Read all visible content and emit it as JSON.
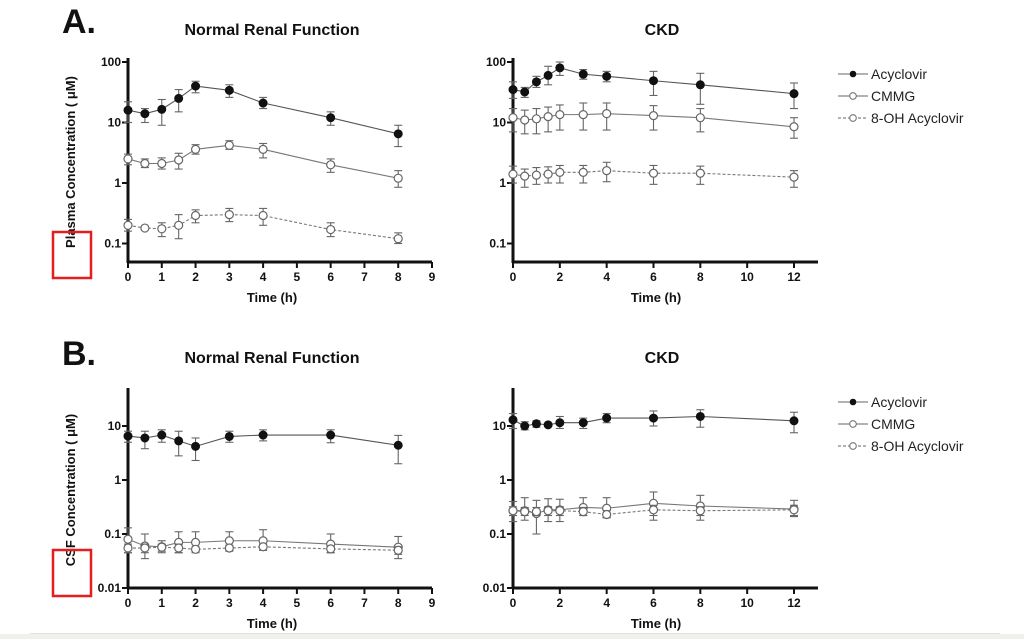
{
  "figure": {
    "panel_labels": [
      "A.",
      "B."
    ],
    "highlight_color": "#e41e1e"
  },
  "chart_data": [
    {
      "id": "plasma-normal",
      "type": "line",
      "panel": "A.",
      "title": "Normal Renal Function",
      "xlabel": "Time (h)",
      "ylabel_prefix": "Plasma",
      "ylabel": "Concentration ( μM)",
      "yscale": "log",
      "xlim": [
        0,
        9
      ],
      "ylim": [
        0.05,
        100
      ],
      "xticks": [
        0,
        1,
        2,
        3,
        4,
        5,
        6,
        7,
        8,
        9
      ],
      "xtick_labels": [
        "0",
        "1",
        "2",
        "3",
        "4",
        "5",
        "6",
        "7",
        "8",
        "9"
      ],
      "yticks": [
        100,
        10,
        1,
        0.1
      ],
      "ytick_labels": [
        "100",
        "10",
        "1",
        "0.1"
      ],
      "x": [
        0,
        0.5,
        1,
        1.5,
        2,
        3,
        4,
        6,
        8
      ],
      "series": [
        {
          "name": "Acyclovir",
          "marker": "filled-circle",
          "line": "solid",
          "values": [
            16,
            14,
            16.5,
            25,
            40,
            34,
            21,
            12,
            6.5
          ],
          "err_low": [
            10,
            10,
            9,
            15,
            31,
            26,
            17,
            9,
            4
          ],
          "err_high": [
            22,
            17,
            24,
            35,
            48,
            42,
            26,
            15,
            9
          ]
        },
        {
          "name": "CMMG",
          "marker": "open-circle",
          "line": "solid",
          "values": [
            2.5,
            2.1,
            2.1,
            2.4,
            3.6,
            4.2,
            3.6,
            2.0,
            1.2
          ],
          "err_low": [
            2.0,
            1.8,
            1.7,
            1.7,
            3.0,
            3.6,
            2.6,
            1.5,
            0.85
          ],
          "err_high": [
            3.0,
            2.5,
            2.6,
            3.1,
            4.3,
            5.0,
            4.5,
            2.5,
            1.6
          ]
        },
        {
          "name": "8-OH Acyclovir",
          "marker": "open-circle",
          "line": "dashed",
          "values": [
            0.2,
            0.18,
            0.175,
            0.2,
            0.29,
            0.3,
            0.29,
            0.17,
            0.12
          ],
          "err_low": [
            0.16,
            0.17,
            0.13,
            0.12,
            0.22,
            0.23,
            0.2,
            0.13,
            0.1
          ],
          "err_high": [
            0.25,
            0.19,
            0.22,
            0.3,
            0.36,
            0.38,
            0.38,
            0.22,
            0.15
          ]
        }
      ]
    },
    {
      "id": "plasma-ckd",
      "type": "line",
      "panel": "A.",
      "title": "CKD",
      "xlabel": "Time (h)",
      "yscale": "log",
      "xlim": [
        0,
        13.5
      ],
      "ylim": [
        0.05,
        100
      ],
      "xticks": [
        0,
        2,
        4,
        6,
        8,
        10,
        12
      ],
      "xtick_labels": [
        "0",
        "2",
        "4",
        "6",
        "8",
        "10",
        "12"
      ],
      "yticks": [
        100,
        10,
        1,
        0.1
      ],
      "ytick_labels": [
        "100",
        "10",
        "1",
        "0.1"
      ],
      "x": [
        0,
        0.5,
        1,
        1.5,
        2,
        3,
        4,
        6,
        8,
        12
      ],
      "series": [
        {
          "name": "Acyclovir",
          "marker": "filled-circle",
          "line": "solid",
          "values": [
            35,
            32,
            47,
            60,
            80,
            63,
            58,
            49,
            42,
            30
          ],
          "err_low": [
            25,
            26,
            38,
            42,
            60,
            52,
            47,
            28,
            20,
            17
          ],
          "err_high": [
            47,
            38,
            58,
            85,
            100,
            75,
            70,
            70,
            65,
            45
          ]
        },
        {
          "name": "CMMG",
          "marker": "open-circle",
          "line": "solid",
          "values": [
            12,
            11,
            11.5,
            12.5,
            13.5,
            13.5,
            14,
            13,
            12,
            8.5
          ],
          "err_low": [
            7,
            6.5,
            6.5,
            7,
            7.5,
            7.5,
            7.5,
            7.5,
            7,
            5.5
          ],
          "err_high": [
            17,
            16,
            17,
            18,
            19.5,
            21,
            21,
            19,
            17,
            12
          ]
        },
        {
          "name": "8-OH Acyclovir",
          "marker": "open-circle",
          "line": "dashed",
          "values": [
            1.4,
            1.3,
            1.35,
            1.4,
            1.5,
            1.5,
            1.6,
            1.45,
            1.45,
            1.25
          ],
          "err_low": [
            1.0,
            0.85,
            0.95,
            1.0,
            1.0,
            1.0,
            1.05,
            0.95,
            0.95,
            0.85
          ],
          "err_high": [
            1.9,
            1.7,
            1.8,
            1.85,
            1.95,
            1.95,
            2.2,
            1.95,
            1.9,
            1.6
          ]
        }
      ],
      "legend": {
        "position": "right",
        "entries": [
          "Acyclovir",
          "CMMG",
          "8-OH Acyclovir"
        ]
      }
    },
    {
      "id": "csf-normal",
      "type": "line",
      "panel": "B.",
      "title": "Normal Renal Function",
      "xlabel": "Time (h)",
      "ylabel_prefix": "CSF",
      "ylabel": "Concentration ( μM)",
      "yscale": "log",
      "xlim": [
        0,
        9
      ],
      "ylim": [
        0.01,
        50
      ],
      "xticks": [
        0,
        1,
        2,
        3,
        4,
        5,
        6,
        7,
        8,
        9
      ],
      "xtick_labels": [
        "0",
        "1",
        "2",
        "3",
        "4",
        "5",
        "6",
        "7",
        "8",
        "9"
      ],
      "yticks": [
        10,
        1,
        0.1,
        0.01
      ],
      "ytick_labels": [
        "10",
        "1",
        "0.1",
        "0.01"
      ],
      "x": [
        0,
        0.5,
        1,
        1.5,
        2,
        3,
        4,
        6,
        8
      ],
      "series": [
        {
          "name": "Acyclovir",
          "marker": "filled-circle",
          "line": "solid",
          "values": [
            6.5,
            6.0,
            6.8,
            5.3,
            4.2,
            6.4,
            6.8,
            6.8,
            4.4
          ],
          "err_low": [
            5.0,
            3.8,
            5.0,
            2.8,
            2.3,
            5.0,
            5.3,
            4.9,
            2.0
          ],
          "err_high": [
            8.0,
            8.0,
            8.5,
            8.0,
            6.0,
            8.0,
            8.5,
            8.5,
            6.7
          ]
        },
        {
          "name": "CMMG",
          "marker": "open-circle",
          "line": "solid",
          "values": [
            0.08,
            0.06,
            0.058,
            0.07,
            0.07,
            0.075,
            0.075,
            0.065,
            0.057
          ],
          "err_low": [
            0.045,
            0.035,
            0.045,
            0.045,
            0.045,
            0.05,
            0.05,
            0.045,
            0.035
          ],
          "err_high": [
            0.13,
            0.1,
            0.075,
            0.11,
            0.11,
            0.11,
            0.12,
            0.1,
            0.09
          ]
        },
        {
          "name": "8-OH Acyclovir",
          "marker": "open-circle",
          "line": "dashed",
          "values": [
            0.055,
            0.055,
            0.057,
            0.055,
            0.052,
            0.055,
            0.058,
            0.053,
            0.05
          ],
          "err_low": [
            0.045,
            0.045,
            0.048,
            0.045,
            0.048,
            0.048,
            0.05,
            0.045,
            0.042
          ],
          "err_high": [
            0.065,
            0.065,
            0.065,
            0.065,
            0.058,
            0.062,
            0.065,
            0.06,
            0.058
          ]
        }
      ]
    },
    {
      "id": "csf-ckd",
      "type": "line",
      "panel": "B.",
      "title": "CKD",
      "xlabel": "Time (h)",
      "yscale": "log",
      "xlim": [
        0,
        13.5
      ],
      "ylim": [
        0.01,
        50
      ],
      "xticks": [
        0,
        2,
        4,
        6,
        8,
        10,
        12
      ],
      "xtick_labels": [
        "0",
        "2",
        "4",
        "6",
        "8",
        "10",
        "12"
      ],
      "yticks": [
        10,
        1,
        0.1,
        0.01
      ],
      "ytick_labels": [
        "10",
        "1",
        "0.1",
        "0.01"
      ],
      "x": [
        0,
        0.5,
        1,
        1.5,
        2,
        3,
        4,
        6,
        8,
        12
      ],
      "series": [
        {
          "name": "Acyclovir",
          "marker": "filled-circle",
          "line": "solid",
          "values": [
            13,
            10,
            11,
            10.5,
            11.5,
            11.5,
            14,
            14,
            15,
            12.5
          ],
          "err_low": [
            9,
            8.5,
            9.5,
            9.8,
            9,
            9,
            11.5,
            10,
            9.5,
            7.5
          ],
          "err_high": [
            17,
            12,
            12.5,
            11,
            15,
            14,
            17,
            19,
            20,
            18
          ]
        },
        {
          "name": "CMMG",
          "marker": "open-circle",
          "line": "solid",
          "values": [
            0.27,
            0.27,
            0.24,
            0.28,
            0.28,
            0.31,
            0.3,
            0.37,
            0.33,
            0.29
          ],
          "err_low": [
            0.17,
            0.18,
            0.1,
            0.17,
            0.17,
            0.22,
            0.2,
            0.18,
            0.18,
            0.21
          ],
          "err_high": [
            0.4,
            0.47,
            0.42,
            0.45,
            0.44,
            0.47,
            0.47,
            0.6,
            0.52,
            0.42
          ]
        },
        {
          "name": "8-OH Acyclovir",
          "marker": "open-circle",
          "line": "dashed",
          "values": [
            0.27,
            0.26,
            0.26,
            0.27,
            0.27,
            0.26,
            0.23,
            0.28,
            0.27,
            0.28
          ],
          "err_low": [
            0.22,
            0.22,
            0.22,
            0.22,
            0.22,
            0.22,
            0.2,
            0.22,
            0.22,
            0.22
          ],
          "err_high": [
            0.32,
            0.31,
            0.31,
            0.32,
            0.32,
            0.31,
            0.27,
            0.34,
            0.32,
            0.34
          ]
        }
      ],
      "legend": {
        "position": "right",
        "entries": [
          "Acyclovir",
          "CMMG",
          "8-OH Acyclovir"
        ]
      }
    }
  ]
}
